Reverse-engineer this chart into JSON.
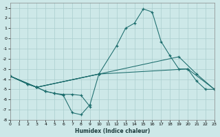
{
  "xlabel": "Humidex (Indice chaleur)",
  "background_color": "#cde8e8",
  "grid_color": "#aacece",
  "line_color": "#1a6b6b",
  "xlim": [
    0,
    23
  ],
  "ylim": [
    -8,
    3.5
  ],
  "xticks": [
    0,
    1,
    2,
    3,
    4,
    5,
    6,
    7,
    8,
    9,
    10,
    11,
    12,
    13,
    14,
    15,
    16,
    17,
    18,
    19,
    20,
    21,
    22,
    23
  ],
  "yticks": [
    -8,
    -7,
    -6,
    -5,
    -4,
    -3,
    -2,
    -1,
    0,
    1,
    2,
    3
  ],
  "series": [
    {
      "x": [
        0,
        2,
        3,
        4,
        5,
        6,
        7,
        8,
        9,
        10
      ],
      "y": [
        -3.7,
        -4.5,
        -4.8,
        -5.2,
        -5.4,
        -5.6,
        -7.3,
        -7.5,
        -6.5,
        -3.5
      ]
    },
    {
      "x": [
        0,
        2,
        3,
        4,
        5,
        6,
        7,
        8,
        9
      ],
      "y": [
        -3.7,
        -4.5,
        -4.8,
        -5.2,
        -5.4,
        -5.5,
        -5.5,
        -5.6,
        -6.7
      ]
    },
    {
      "x": [
        0,
        3,
        10,
        12,
        13,
        14,
        15,
        16,
        17,
        18,
        19,
        20,
        21,
        22,
        23
      ],
      "y": [
        -3.7,
        -4.8,
        -3.5,
        -0.7,
        1.0,
        1.5,
        2.9,
        2.6,
        -0.3,
        -1.7,
        -3.0,
        -3.0,
        -4.2,
        -5.0,
        -5.0
      ]
    },
    {
      "x": [
        0,
        3,
        10,
        19,
        21,
        23
      ],
      "y": [
        -3.7,
        -4.8,
        -3.5,
        -1.8,
        -3.5,
        -5.0
      ]
    },
    {
      "x": [
        0,
        3,
        10,
        20,
        23
      ],
      "y": [
        -3.7,
        -4.8,
        -3.5,
        -3.0,
        -5.0
      ]
    }
  ]
}
